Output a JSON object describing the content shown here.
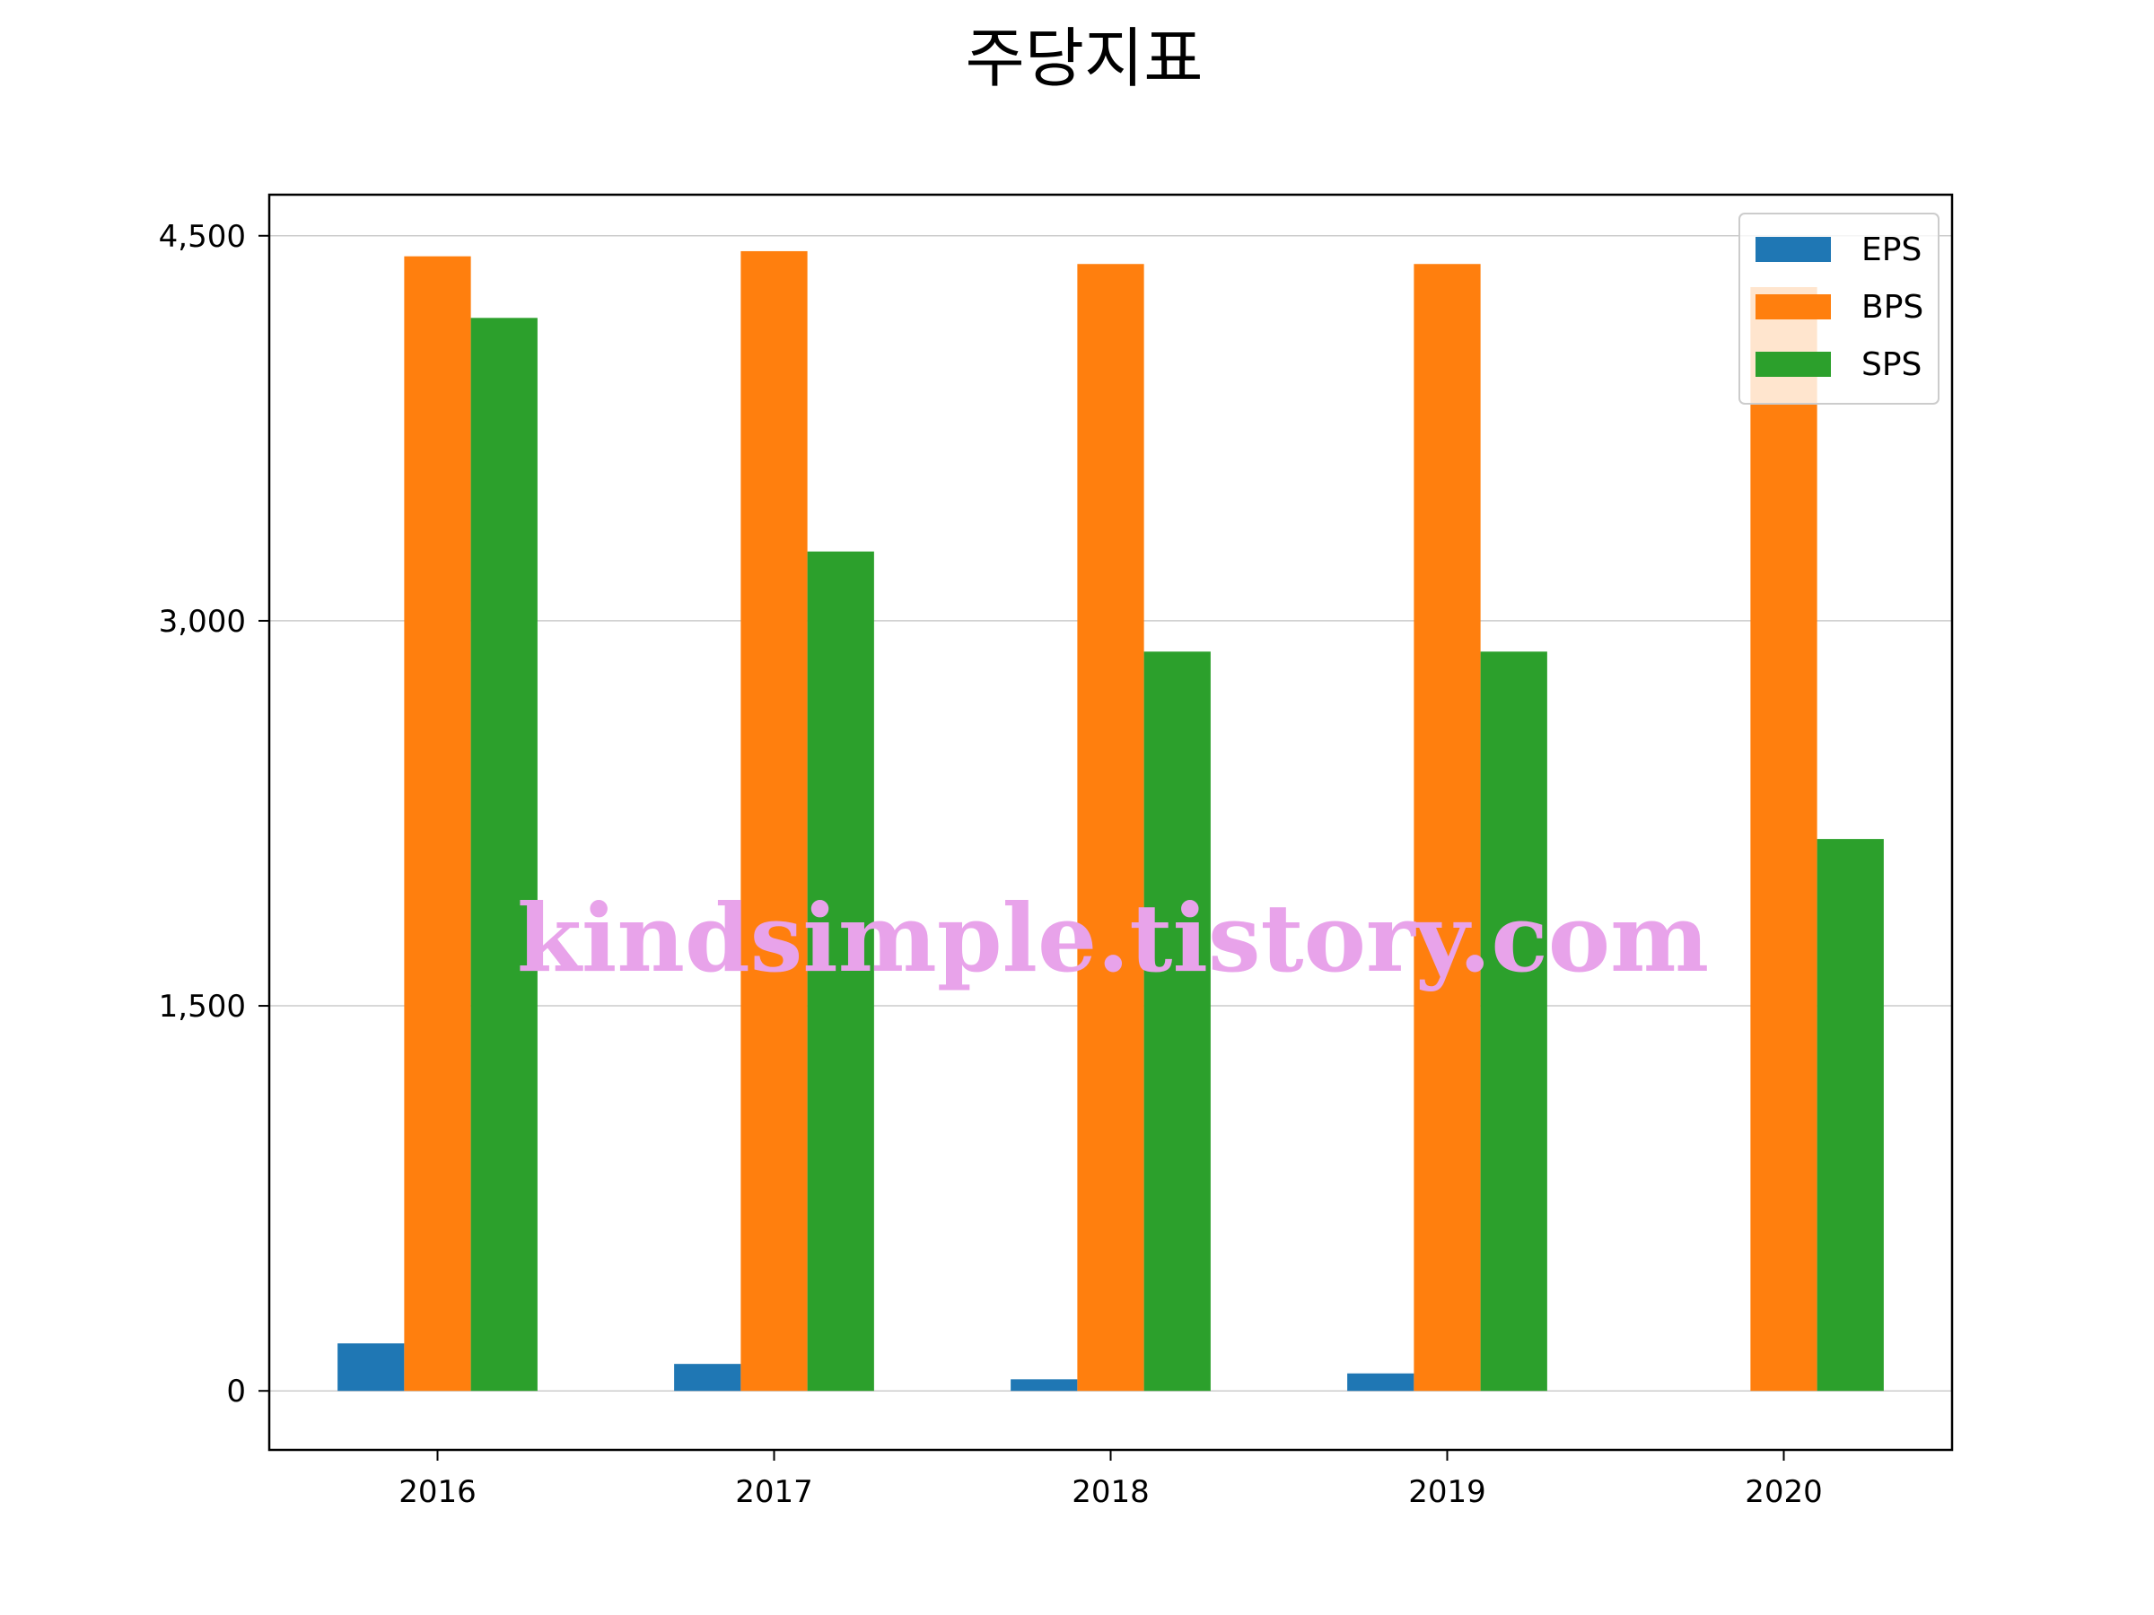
{
  "chart_data": {
    "type": "bar",
    "title": "주당지표",
    "xlabel": "",
    "ylabel": "",
    "categories": [
      "2016",
      "2017",
      "2018",
      "2019",
      "2020"
    ],
    "series": [
      {
        "name": "EPS",
        "color": "#1f77b4",
        "values": [
          185,
          105,
          45,
          68,
          0
        ]
      },
      {
        "name": "BPS",
        "color": "#ff7f0e",
        "values": [
          4420,
          4440,
          4390,
          4390,
          4300
        ]
      },
      {
        "name": "SPS",
        "color": "#2ca02c",
        "values": [
          4180,
          3270,
          2880,
          2880,
          2150
        ]
      }
    ],
    "ylim": [
      -230,
      4660
    ],
    "yticks": [
      0,
      1500,
      3000,
      4500
    ],
    "ytick_labels": [
      "0",
      "1,500",
      "3,000",
      "4,500"
    ],
    "grid": "y",
    "legend_position": "top-right"
  },
  "watermark": "kindsimple.tistory.com"
}
